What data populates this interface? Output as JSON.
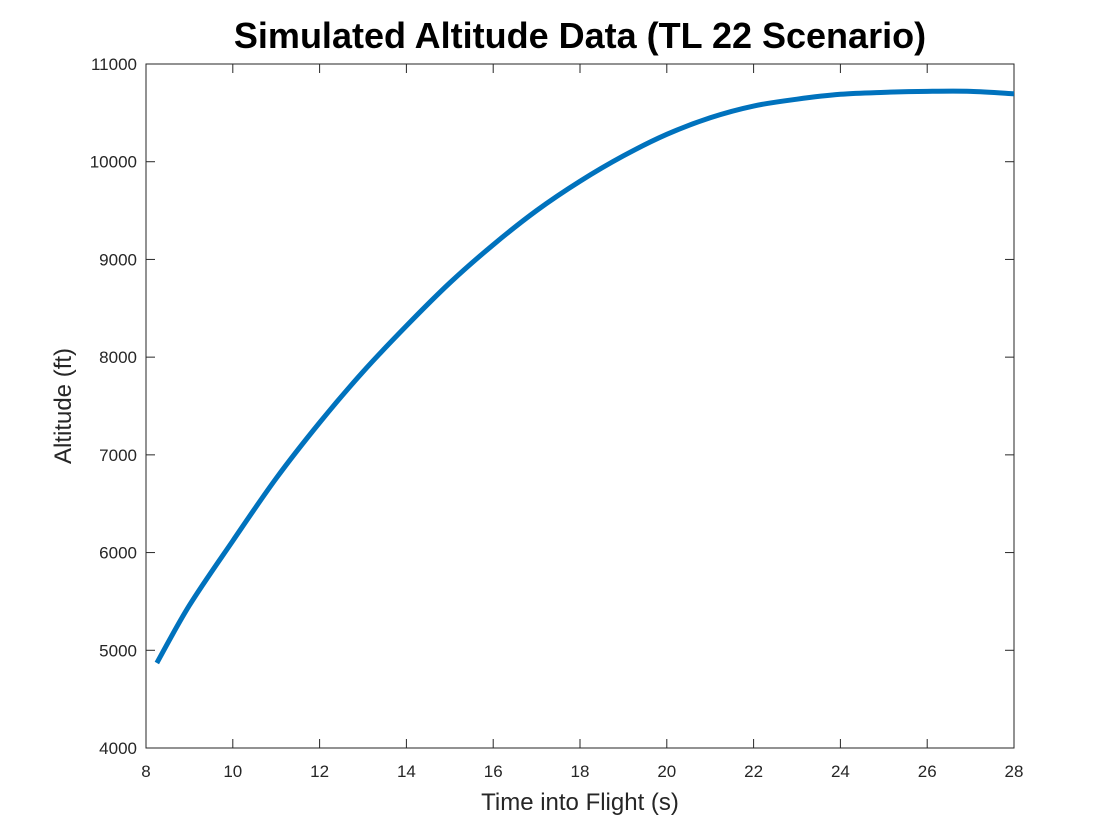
{
  "chart_data": {
    "type": "line",
    "title": "Simulated Altitude Data (TL 22 Scenario)",
    "xlabel": "Time into Flight (s)",
    "ylabel": "Altitude (ft)",
    "xlim": [
      8,
      28
    ],
    "ylim": [
      4000,
      11000
    ],
    "xticks": [
      8,
      10,
      12,
      14,
      16,
      18,
      20,
      22,
      24,
      26,
      28
    ],
    "yticks": [
      4000,
      5000,
      6000,
      7000,
      8000,
      9000,
      10000,
      11000
    ],
    "grid": false,
    "line_color": "#0072BD",
    "series": [
      {
        "x": [
          8.25,
          9,
          10,
          11,
          12,
          13,
          14,
          15,
          16,
          17,
          18,
          19,
          20,
          21,
          22,
          23,
          24,
          25,
          26,
          27,
          28
        ],
        "y": [
          4870,
          5460,
          6120,
          6760,
          7330,
          7850,
          8320,
          8760,
          9150,
          9500,
          9800,
          10060,
          10280,
          10450,
          10570,
          10640,
          10690,
          10710,
          10720,
          10720,
          10695
        ]
      }
    ]
  }
}
